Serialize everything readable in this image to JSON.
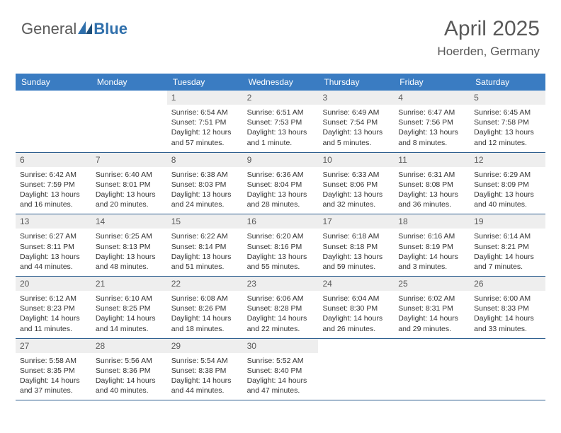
{
  "logo": {
    "part1": "General",
    "part2": "Blue"
  },
  "header": {
    "title": "April 2025",
    "location": "Hoerden, Germany"
  },
  "colors": {
    "header_bar": "#3a7cc2",
    "day_num_bg": "#eeeeee",
    "text_gray": "#595959",
    "rule": "#2e5f8f",
    "white": "#ffffff"
  },
  "days_of_week": [
    "Sunday",
    "Monday",
    "Tuesday",
    "Wednesday",
    "Thursday",
    "Friday",
    "Saturday"
  ],
  "weeks": [
    [
      {
        "n": "",
        "empty": true,
        "sunrise": "",
        "sunset": "",
        "daylight": ""
      },
      {
        "n": "",
        "empty": true,
        "sunrise": "",
        "sunset": "",
        "daylight": ""
      },
      {
        "n": "1",
        "sunrise": "Sunrise: 6:54 AM",
        "sunset": "Sunset: 7:51 PM",
        "daylight": "Daylight: 12 hours and 57 minutes."
      },
      {
        "n": "2",
        "sunrise": "Sunrise: 6:51 AM",
        "sunset": "Sunset: 7:53 PM",
        "daylight": "Daylight: 13 hours and 1 minute."
      },
      {
        "n": "3",
        "sunrise": "Sunrise: 6:49 AM",
        "sunset": "Sunset: 7:54 PM",
        "daylight": "Daylight: 13 hours and 5 minutes."
      },
      {
        "n": "4",
        "sunrise": "Sunrise: 6:47 AM",
        "sunset": "Sunset: 7:56 PM",
        "daylight": "Daylight: 13 hours and 8 minutes."
      },
      {
        "n": "5",
        "sunrise": "Sunrise: 6:45 AM",
        "sunset": "Sunset: 7:58 PM",
        "daylight": "Daylight: 13 hours and 12 minutes."
      }
    ],
    [
      {
        "n": "6",
        "sunrise": "Sunrise: 6:42 AM",
        "sunset": "Sunset: 7:59 PM",
        "daylight": "Daylight: 13 hours and 16 minutes."
      },
      {
        "n": "7",
        "sunrise": "Sunrise: 6:40 AM",
        "sunset": "Sunset: 8:01 PM",
        "daylight": "Daylight: 13 hours and 20 minutes."
      },
      {
        "n": "8",
        "sunrise": "Sunrise: 6:38 AM",
        "sunset": "Sunset: 8:03 PM",
        "daylight": "Daylight: 13 hours and 24 minutes."
      },
      {
        "n": "9",
        "sunrise": "Sunrise: 6:36 AM",
        "sunset": "Sunset: 8:04 PM",
        "daylight": "Daylight: 13 hours and 28 minutes."
      },
      {
        "n": "10",
        "sunrise": "Sunrise: 6:33 AM",
        "sunset": "Sunset: 8:06 PM",
        "daylight": "Daylight: 13 hours and 32 minutes."
      },
      {
        "n": "11",
        "sunrise": "Sunrise: 6:31 AM",
        "sunset": "Sunset: 8:08 PM",
        "daylight": "Daylight: 13 hours and 36 minutes."
      },
      {
        "n": "12",
        "sunrise": "Sunrise: 6:29 AM",
        "sunset": "Sunset: 8:09 PM",
        "daylight": "Daylight: 13 hours and 40 minutes."
      }
    ],
    [
      {
        "n": "13",
        "sunrise": "Sunrise: 6:27 AM",
        "sunset": "Sunset: 8:11 PM",
        "daylight": "Daylight: 13 hours and 44 minutes."
      },
      {
        "n": "14",
        "sunrise": "Sunrise: 6:25 AM",
        "sunset": "Sunset: 8:13 PM",
        "daylight": "Daylight: 13 hours and 48 minutes."
      },
      {
        "n": "15",
        "sunrise": "Sunrise: 6:22 AM",
        "sunset": "Sunset: 8:14 PM",
        "daylight": "Daylight: 13 hours and 51 minutes."
      },
      {
        "n": "16",
        "sunrise": "Sunrise: 6:20 AM",
        "sunset": "Sunset: 8:16 PM",
        "daylight": "Daylight: 13 hours and 55 minutes."
      },
      {
        "n": "17",
        "sunrise": "Sunrise: 6:18 AM",
        "sunset": "Sunset: 8:18 PM",
        "daylight": "Daylight: 13 hours and 59 minutes."
      },
      {
        "n": "18",
        "sunrise": "Sunrise: 6:16 AM",
        "sunset": "Sunset: 8:19 PM",
        "daylight": "Daylight: 14 hours and 3 minutes."
      },
      {
        "n": "19",
        "sunrise": "Sunrise: 6:14 AM",
        "sunset": "Sunset: 8:21 PM",
        "daylight": "Daylight: 14 hours and 7 minutes."
      }
    ],
    [
      {
        "n": "20",
        "sunrise": "Sunrise: 6:12 AM",
        "sunset": "Sunset: 8:23 PM",
        "daylight": "Daylight: 14 hours and 11 minutes."
      },
      {
        "n": "21",
        "sunrise": "Sunrise: 6:10 AM",
        "sunset": "Sunset: 8:25 PM",
        "daylight": "Daylight: 14 hours and 14 minutes."
      },
      {
        "n": "22",
        "sunrise": "Sunrise: 6:08 AM",
        "sunset": "Sunset: 8:26 PM",
        "daylight": "Daylight: 14 hours and 18 minutes."
      },
      {
        "n": "23",
        "sunrise": "Sunrise: 6:06 AM",
        "sunset": "Sunset: 8:28 PM",
        "daylight": "Daylight: 14 hours and 22 minutes."
      },
      {
        "n": "24",
        "sunrise": "Sunrise: 6:04 AM",
        "sunset": "Sunset: 8:30 PM",
        "daylight": "Daylight: 14 hours and 26 minutes."
      },
      {
        "n": "25",
        "sunrise": "Sunrise: 6:02 AM",
        "sunset": "Sunset: 8:31 PM",
        "daylight": "Daylight: 14 hours and 29 minutes."
      },
      {
        "n": "26",
        "sunrise": "Sunrise: 6:00 AM",
        "sunset": "Sunset: 8:33 PM",
        "daylight": "Daylight: 14 hours and 33 minutes."
      }
    ],
    [
      {
        "n": "27",
        "sunrise": "Sunrise: 5:58 AM",
        "sunset": "Sunset: 8:35 PM",
        "daylight": "Daylight: 14 hours and 37 minutes."
      },
      {
        "n": "28",
        "sunrise": "Sunrise: 5:56 AM",
        "sunset": "Sunset: 8:36 PM",
        "daylight": "Daylight: 14 hours and 40 minutes."
      },
      {
        "n": "29",
        "sunrise": "Sunrise: 5:54 AM",
        "sunset": "Sunset: 8:38 PM",
        "daylight": "Daylight: 14 hours and 44 minutes."
      },
      {
        "n": "30",
        "sunrise": "Sunrise: 5:52 AM",
        "sunset": "Sunset: 8:40 PM",
        "daylight": "Daylight: 14 hours and 47 minutes."
      },
      {
        "n": "",
        "empty": true,
        "sunrise": "",
        "sunset": "",
        "daylight": ""
      },
      {
        "n": "",
        "empty": true,
        "sunrise": "",
        "sunset": "",
        "daylight": ""
      },
      {
        "n": "",
        "empty": true,
        "sunrise": "",
        "sunset": "",
        "daylight": ""
      }
    ]
  ]
}
